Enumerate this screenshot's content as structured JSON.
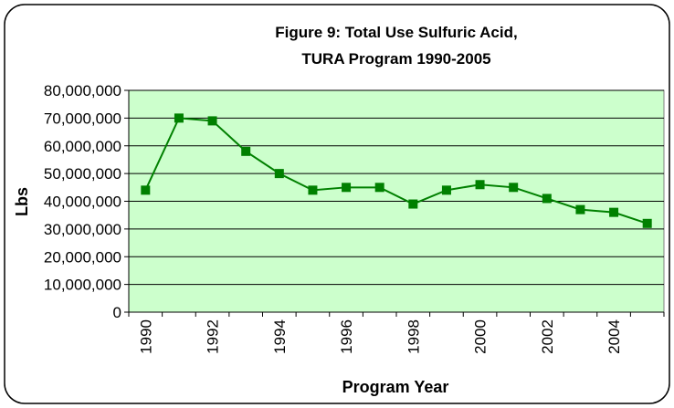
{
  "chart_data": {
    "type": "line",
    "title": [
      "Figure 9: Total Use Sulfuric Acid,",
      "TURA Program 1990-2005"
    ],
    "x_label": "Program Year",
    "y_label": "Lbs",
    "categories": [
      "1990",
      null,
      "1992",
      null,
      "1994",
      null,
      "1996",
      null,
      "1998",
      null,
      "2000",
      null,
      "2002",
      null,
      "2004",
      null
    ],
    "series": [
      {
        "name": "Total Use",
        "color": "#008000",
        "values": [
          44000000,
          70000000,
          69000000,
          58000000,
          50000000,
          44000000,
          45000000,
          45000000,
          39000000,
          44000000,
          46000000,
          45000000,
          41000000,
          37000000,
          36000000,
          32000000
        ]
      }
    ],
    "ylim": [
      0,
      80000000
    ],
    "yticks": [
      0,
      {
        "value": 10000000,
        "label": "10,000,000"
      },
      {
        "value": 20000000,
        "label": "20,000,000"
      },
      {
        "value": 30000000,
        "label": "30,000,000"
      },
      {
        "value": 40000000,
        "label": "40,000,000"
      },
      {
        "value": 50000000,
        "label": "50,000,000"
      },
      {
        "value": 60000000,
        "label": "60,000,000"
      },
      {
        "value": 70000000,
        "label": "70,000,000"
      },
      {
        "value": 80000000,
        "label": "80,000,000"
      }
    ],
    "grid": true,
    "plot_background": "#ccffcc"
  }
}
